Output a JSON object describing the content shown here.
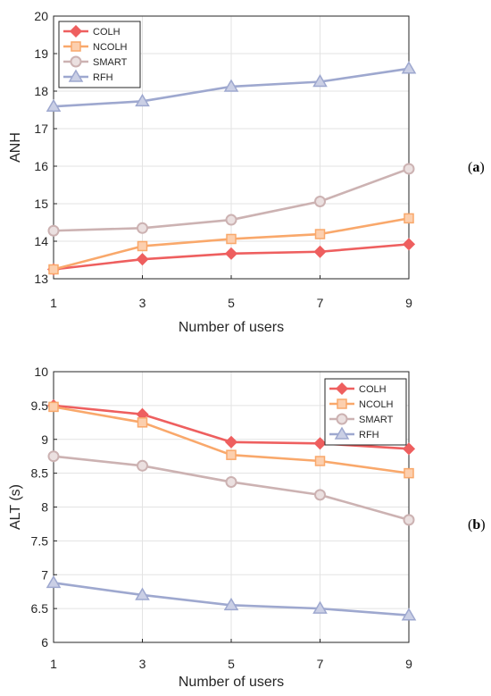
{
  "chart_data": [
    {
      "type": "line",
      "panel_label": "(a)",
      "panel_letter": "a",
      "xlabel": "Number of users",
      "ylabel": "ANH",
      "x": [
        1,
        3,
        5,
        7,
        9
      ],
      "xlim": [
        1,
        9
      ],
      "xticks": [
        "1",
        "3",
        "5",
        "7",
        "9"
      ],
      "ylim": [
        13,
        20
      ],
      "yticks": [
        "13",
        "14",
        "15",
        "16",
        "17",
        "18",
        "19",
        "20"
      ],
      "grid": true,
      "legend_position": "top-left",
      "series": [
        {
          "name": "COLH",
          "values": [
            13.25,
            13.52,
            13.67,
            13.72,
            13.92
          ],
          "color": "#ee5f5f",
          "marker": "diamond"
        },
        {
          "name": "NCOLH",
          "values": [
            13.25,
            13.87,
            14.06,
            14.19,
            14.61
          ],
          "color": "#f9a86b",
          "marker": "square"
        },
        {
          "name": "SMART",
          "values": [
            14.28,
            14.35,
            14.57,
            15.06,
            15.93
          ],
          "color": "#ccb2b2",
          "marker": "circle"
        },
        {
          "name": "RFH",
          "values": [
            17.59,
            17.73,
            18.12,
            18.25,
            18.6
          ],
          "color": "#9ea8cf",
          "marker": "triangle"
        }
      ]
    },
    {
      "type": "line",
      "panel_label": "(b)",
      "panel_letter": "b",
      "xlabel": "Number of users",
      "ylabel": "ALT (s)",
      "x": [
        1,
        3,
        5,
        7,
        9
      ],
      "xlim": [
        1,
        9
      ],
      "xticks": [
        "1",
        "3",
        "5",
        "7",
        "9"
      ],
      "ylim": [
        6,
        10
      ],
      "yticks": [
        "6",
        "6.5",
        "7",
        "7.5",
        "8",
        "8.5",
        "9",
        "9.5",
        "10"
      ],
      "grid": true,
      "legend_position": "top-right",
      "series": [
        {
          "name": "COLH",
          "values": [
            9.5,
            9.37,
            8.96,
            8.94,
            8.86
          ],
          "color": "#ee5f5f",
          "marker": "diamond"
        },
        {
          "name": "NCOLH",
          "values": [
            9.48,
            9.25,
            8.77,
            8.68,
            8.5
          ],
          "color": "#f9a86b",
          "marker": "square"
        },
        {
          "name": "SMART",
          "values": [
            8.75,
            8.61,
            8.37,
            8.18,
            7.81
          ],
          "color": "#ccb2b2",
          "marker": "circle"
        },
        {
          "name": "RFH",
          "values": [
            6.88,
            6.7,
            6.55,
            6.5,
            6.4
          ],
          "color": "#9ea8cf",
          "marker": "triangle"
        }
      ]
    }
  ]
}
